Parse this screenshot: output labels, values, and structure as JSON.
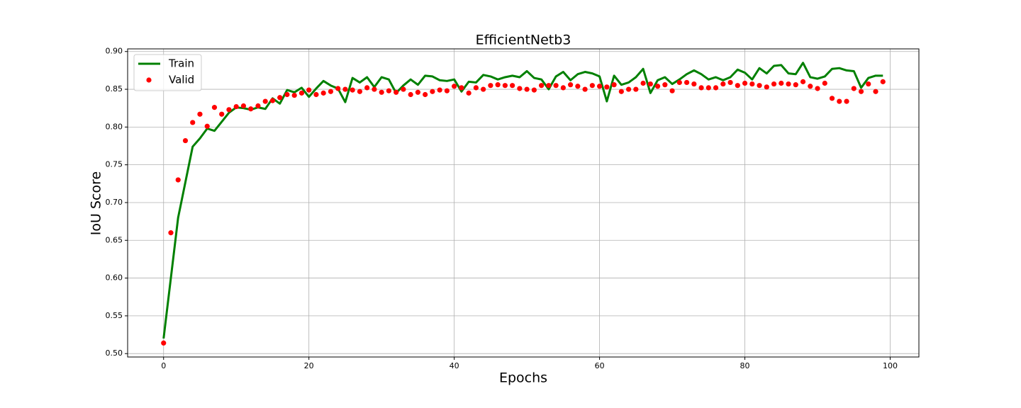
{
  "chart_data": {
    "type": "line",
    "title": "EfficientNetb3",
    "x_label": "Epochs",
    "y_label": "IoU Score",
    "x": [
      0,
      1,
      2,
      3,
      4,
      5,
      6,
      7,
      8,
      9,
      10,
      11,
      12,
      13,
      14,
      15,
      16,
      17,
      18,
      19,
      20,
      21,
      22,
      23,
      24,
      25,
      26,
      27,
      28,
      29,
      30,
      31,
      32,
      33,
      34,
      35,
      36,
      37,
      38,
      39,
      40,
      41,
      42,
      43,
      44,
      45,
      46,
      47,
      48,
      49,
      50,
      51,
      52,
      53,
      54,
      55,
      56,
      57,
      58,
      59,
      60,
      61,
      62,
      63,
      64,
      65,
      66,
      67,
      68,
      69,
      70,
      71,
      72,
      73,
      74,
      75,
      76,
      77,
      78,
      79,
      80,
      81,
      82,
      83,
      84,
      85,
      86,
      87,
      88,
      89,
      90,
      91,
      92,
      93,
      94,
      95,
      96,
      97,
      98,
      99
    ],
    "series": [
      {
        "name": "Train",
        "color": "#008000",
        "style": "line",
        "values": [
          0.52,
          0.6,
          0.68,
          0.727,
          0.774,
          0.785,
          0.798,
          0.795,
          0.807,
          0.819,
          0.826,
          0.825,
          0.823,
          0.826,
          0.824,
          0.838,
          0.831,
          0.849,
          0.846,
          0.852,
          0.84,
          0.851,
          0.861,
          0.855,
          0.851,
          0.833,
          0.865,
          0.859,
          0.866,
          0.853,
          0.866,
          0.863,
          0.845,
          0.855,
          0.863,
          0.856,
          0.868,
          0.867,
          0.862,
          0.861,
          0.863,
          0.847,
          0.86,
          0.859,
          0.869,
          0.867,
          0.863,
          0.866,
          0.868,
          0.866,
          0.874,
          0.865,
          0.863,
          0.85,
          0.867,
          0.873,
          0.862,
          0.87,
          0.873,
          0.871,
          0.867,
          0.834,
          0.868,
          0.856,
          0.859,
          0.866,
          0.877,
          0.845,
          0.862,
          0.866,
          0.857,
          0.863,
          0.87,
          0.875,
          0.87,
          0.863,
          0.866,
          0.862,
          0.866,
          0.876,
          0.872,
          0.863,
          0.878,
          0.871,
          0.881,
          0.882,
          0.871,
          0.87,
          0.885,
          0.866,
          0.864,
          0.867,
          0.877,
          0.878,
          0.875,
          0.874,
          0.852,
          0.865,
          0.868,
          0.868
        ]
      },
      {
        "name": "Valid",
        "color": "#ff0000",
        "style": "markers",
        "values": [
          0.514,
          0.66,
          0.73,
          0.782,
          0.806,
          0.817,
          0.801,
          0.826,
          0.817,
          0.823,
          0.827,
          0.828,
          0.824,
          0.828,
          0.834,
          0.835,
          0.839,
          0.843,
          0.842,
          0.845,
          0.849,
          0.843,
          0.845,
          0.847,
          0.851,
          0.85,
          0.849,
          0.847,
          0.852,
          0.85,
          0.846,
          0.848,
          0.846,
          0.85,
          0.843,
          0.846,
          0.843,
          0.847,
          0.849,
          0.848,
          0.854,
          0.852,
          0.845,
          0.852,
          0.85,
          0.855,
          0.856,
          0.855,
          0.855,
          0.851,
          0.85,
          0.849,
          0.855,
          0.855,
          0.855,
          0.852,
          0.856,
          0.854,
          0.85,
          0.855,
          0.854,
          0.853,
          0.856,
          0.847,
          0.85,
          0.85,
          0.858,
          0.857,
          0.854,
          0.856,
          0.848,
          0.859,
          0.859,
          0.857,
          0.852,
          0.852,
          0.852,
          0.857,
          0.859,
          0.855,
          0.858,
          0.857,
          0.855,
          0.853,
          0.857,
          0.858,
          0.857,
          0.856,
          0.86,
          0.854,
          0.851,
          0.858,
          0.838,
          0.834,
          0.834,
          0.851,
          0.847,
          0.857,
          0.847,
          0.86
        ]
      }
    ],
    "xlim": [
      -4.95,
      103.95
    ],
    "ylim": [
      0.4955,
      0.9035
    ],
    "xticks": [
      0,
      20,
      40,
      60,
      80,
      100
    ],
    "yticks": [
      {
        "value": 0.5,
        "label": "0.50"
      },
      {
        "value": 0.55,
        "label": "0.55"
      },
      {
        "value": 0.6,
        "label": "0.60"
      },
      {
        "value": 0.65,
        "label": "0.65"
      },
      {
        "value": 0.7,
        "label": "0.70"
      },
      {
        "value": 0.75,
        "label": "0.75"
      },
      {
        "value": 0.8,
        "label": "0.80"
      },
      {
        "value": 0.85,
        "label": "0.85"
      },
      {
        "value": 0.9,
        "label": "0.90"
      }
    ],
    "grid": true,
    "legend": "upper-left"
  }
}
